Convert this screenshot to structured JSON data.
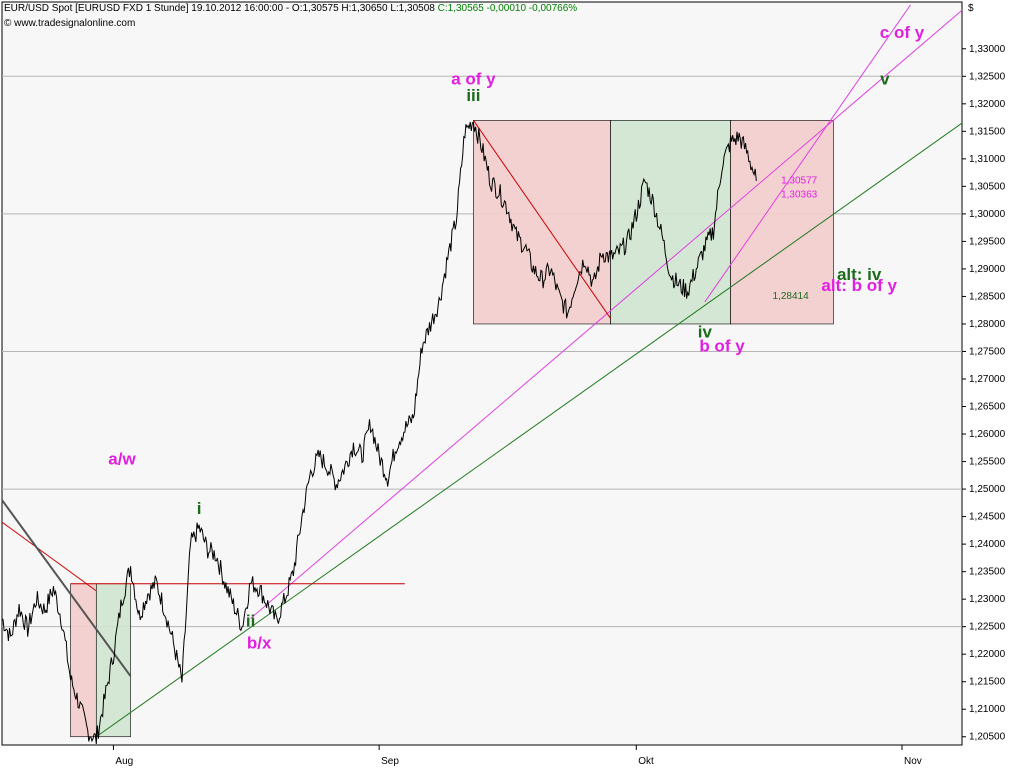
{
  "header": {
    "line1_main": "EUR/USD Spot [EURUSD FXD  1 Stunde] 19.10.2012 16:00:00 - O:1,30575 H:1,30650 L:1,30508",
    "line1_change": "C:1,30565 -0,00010 -0,00766%",
    "line2": "© www.tradesignalonline.com",
    "currency_symbol": "$"
  },
  "colors": {
    "background": "#ffffff",
    "plot_bg": "#f7f7f7",
    "grid": "#b5b5b5",
    "price": "#000000",
    "wave_magenta": "#e020e0",
    "wave_green": "#1a6b1a",
    "trend_green": "#1f7a1f",
    "trend_magenta": "#e040e0",
    "trend_red": "#cc0000",
    "box_red": "#f3cccc",
    "box_green": "#cfe3cf"
  },
  "chart_data": {
    "type": "line",
    "title": "EUR/USD Spot [EURUSD FXD  1 Stunde]",
    "xlabel": "",
    "ylabel": "",
    "ylim": [
      1.2035,
      1.3385
    ],
    "y_ticks": [
      "1,33000",
      "1,32500",
      "1,32000",
      "1,31500",
      "1,31000",
      "1,30500",
      "1,30000",
      "1,29500",
      "1,29000",
      "1,28500",
      "1,28000",
      "1,27500",
      "1,27000",
      "1,26500",
      "1,26000",
      "1,25500",
      "1,25000",
      "1,24500",
      "1,24000",
      "1,23500",
      "1,23000",
      "1,22500",
      "1,22000",
      "1,21500",
      "1,21000",
      "1,20500"
    ],
    "x_ticks": [
      "Aug",
      "Sep",
      "Okt",
      "Nov"
    ],
    "grid": "horizontal",
    "series": [
      {
        "values": [
          [
            "2012-07-19",
            1.2265
          ],
          [
            "2012-07-20",
            1.223
          ],
          [
            "2012-07-21",
            1.2285
          ],
          [
            "2012-07-22",
            1.2245
          ],
          [
            "2012-07-23",
            1.23
          ],
          [
            "2012-07-24",
            1.228
          ],
          [
            "2012-07-25",
            1.232
          ],
          [
            "2012-07-26",
            1.226
          ],
          [
            "2012-07-27",
            1.2155
          ],
          [
            "2012-07-28",
            1.211
          ],
          [
            "2012-07-29",
            1.206
          ],
          [
            "2012-07-30",
            1.2045
          ],
          [
            "2012-07-31",
            1.212
          ],
          [
            "2012-08-01",
            1.22
          ],
          [
            "2012-08-02",
            1.23
          ],
          [
            "2012-08-03",
            1.236
          ],
          [
            "2012-08-04",
            1.227
          ],
          [
            "2012-08-05",
            1.231
          ],
          [
            "2012-08-06",
            1.233
          ],
          [
            "2012-08-07",
            1.228
          ],
          [
            "2012-08-08",
            1.222
          ],
          [
            "2012-08-09",
            1.215
          ],
          [
            "2012-08-10",
            1.24
          ],
          [
            "2012-08-11",
            1.243
          ],
          [
            "2012-08-12",
            1.239
          ],
          [
            "2012-08-13",
            1.238
          ],
          [
            "2012-08-14",
            1.233
          ],
          [
            "2012-08-15",
            1.229
          ],
          [
            "2012-08-16",
            1.225
          ],
          [
            "2012-08-17",
            1.233
          ],
          [
            "2012-08-18",
            1.232
          ],
          [
            "2012-08-19",
            1.229
          ],
          [
            "2012-08-20",
            1.226
          ],
          [
            "2012-08-21",
            1.23
          ],
          [
            "2012-08-22",
            1.235
          ],
          [
            "2012-08-23",
            1.245
          ],
          [
            "2012-08-24",
            1.253
          ],
          [
            "2012-08-25",
            1.256
          ],
          [
            "2012-08-26",
            1.254
          ],
          [
            "2012-08-27",
            1.251
          ],
          [
            "2012-08-28",
            1.254
          ],
          [
            "2012-08-29",
            1.258
          ],
          [
            "2012-08-30",
            1.256
          ],
          [
            "2012-08-31",
            1.262
          ],
          [
            "2012-09-01",
            1.256
          ],
          [
            "2012-09-02",
            1.252
          ],
          [
            "2012-09-03",
            1.258
          ],
          [
            "2012-09-04",
            1.261
          ],
          [
            "2012-09-05",
            1.263
          ],
          [
            "2012-09-06",
            1.276
          ],
          [
            "2012-09-07",
            1.28
          ],
          [
            "2012-09-08",
            1.284
          ],
          [
            "2012-09-09",
            1.292
          ],
          [
            "2012-09-10",
            1.299
          ],
          [
            "2012-09-11",
            1.315
          ],
          [
            "2012-09-12",
            1.317
          ],
          [
            "2012-09-13",
            1.312
          ],
          [
            "2012-09-14",
            1.306
          ],
          [
            "2012-09-15",
            1.304
          ],
          [
            "2012-09-16",
            1.301
          ],
          [
            "2012-09-17",
            1.296
          ],
          [
            "2012-09-18",
            1.294
          ],
          [
            "2012-09-19",
            1.29
          ],
          [
            "2012-09-20",
            1.288
          ],
          [
            "2012-09-21",
            1.29
          ],
          [
            "2012-09-22",
            1.285
          ],
          [
            "2012-09-23",
            1.282
          ],
          [
            "2012-09-24",
            1.288
          ],
          [
            "2012-09-25",
            1.292
          ],
          [
            "2012-09-26",
            1.287
          ],
          [
            "2012-09-27",
            1.293
          ],
          [
            "2012-09-28",
            1.292
          ],
          [
            "2012-09-29",
            1.293
          ],
          [
            "2012-09-30",
            1.295
          ],
          [
            "2012-10-01",
            1.3
          ],
          [
            "2012-10-02",
            1.306
          ],
          [
            "2012-10-03",
            1.302
          ],
          [
            "2012-10-04",
            1.296
          ],
          [
            "2012-10-05",
            1.289
          ],
          [
            "2012-10-06",
            1.287
          ],
          [
            "2012-10-07",
            1.286
          ],
          [
            "2012-10-08",
            1.29
          ],
          [
            "2012-10-09",
            1.294
          ],
          [
            "2012-10-10",
            1.297
          ],
          [
            "2012-10-11",
            1.309
          ],
          [
            "2012-10-12",
            1.313
          ],
          [
            "2012-10-13",
            1.314
          ],
          [
            "2012-10-14",
            1.311
          ],
          [
            "2012-10-15",
            1.306
          ]
        ]
      }
    ],
    "annotations": [
      {
        "text": "a of y",
        "color": "magenta",
        "anchor": [
          "2012-09-12",
          1.3235
        ]
      },
      {
        "text": "iii",
        "color": "green",
        "anchor": [
          "2012-09-12",
          1.3205
        ]
      },
      {
        "text": "c of y",
        "color": "magenta",
        "anchor": [
          "2012-11-01",
          1.332
        ]
      },
      {
        "text": "v",
        "color": "green",
        "anchor": [
          "2012-10-30",
          1.3235
        ]
      },
      {
        "text": "alt: iv",
        "color": "green",
        "anchor": [
          "2012-10-27",
          1.288
        ]
      },
      {
        "text": "alt: b of y",
        "color": "magenta",
        "anchor": [
          "2012-10-27",
          1.286
        ]
      },
      {
        "text": "iv",
        "color": "green",
        "anchor": [
          "2012-10-09",
          1.2775
        ]
      },
      {
        "text": "b of y",
        "color": "magenta",
        "anchor": [
          "2012-10-11",
          1.275
        ]
      },
      {
        "text": "a/w",
        "color": "magenta",
        "anchor": [
          "2012-08-02",
          1.2545
        ]
      },
      {
        "text": "i",
        "color": "green",
        "anchor": [
          "2012-08-11",
          1.2455
        ]
      },
      {
        "text": "ii",
        "color": "green",
        "anchor": [
          "2012-08-17",
          1.225
        ]
      },
      {
        "text": "b/x",
        "color": "magenta",
        "anchor": [
          "2012-08-18",
          1.221
        ]
      },
      {
        "text": "1,30577",
        "color": "magenta",
        "small": true,
        "anchor": [
          "2012-10-20",
          1.3055
        ]
      },
      {
        "text": "1,30363",
        "color": "magenta",
        "small": true,
        "anchor": [
          "2012-10-20",
          1.303
        ]
      },
      {
        "text": "1,28414",
        "color": "green",
        "small": true,
        "anchor": [
          "2012-10-19",
          1.2845
        ]
      }
    ],
    "levels": {
      "level_1_30577": 1.30577,
      "level_1_30363": 1.30363,
      "level_1_28414": 1.28414,
      "h_red_line": 1.2328
    }
  }
}
